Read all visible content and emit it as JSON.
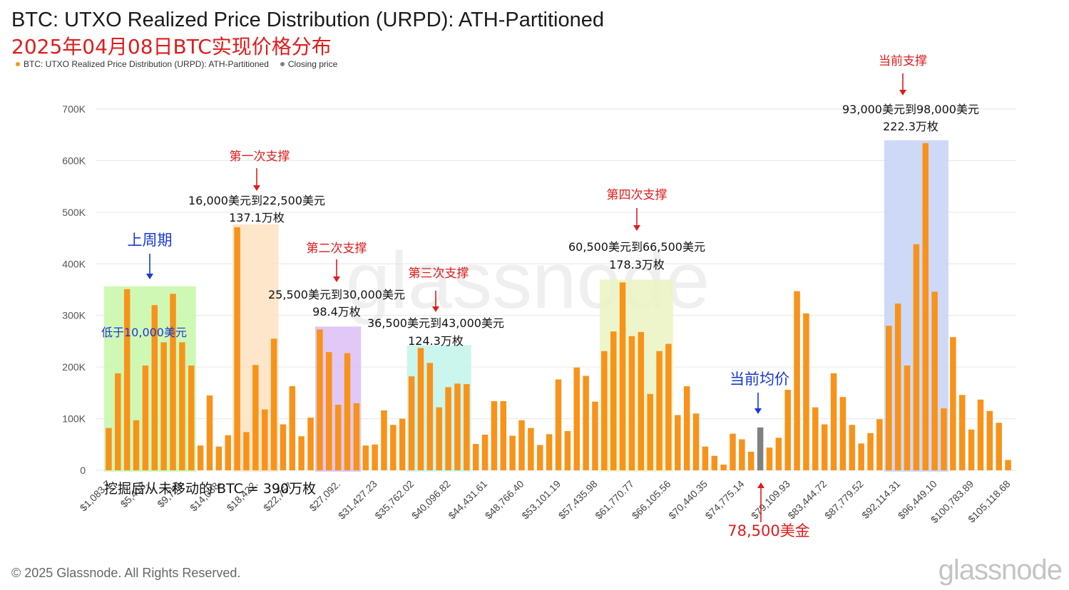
{
  "header": {
    "title": "BTC: UTXO Realized Price Distribution (URPD): ATH-Partitioned",
    "subtitle": "2025年04月08日BTC实现价格分布"
  },
  "legend": {
    "series_label": "BTC: UTXO Realized Price Distribution (URPD): ATH-Partitioned",
    "closing_label": "Closing price",
    "series_color": "#f7931a",
    "closing_color": "#808080"
  },
  "footer": {
    "copyright": "© 2025 Glassnode. All Rights Reserved.",
    "logo": "glassnode"
  },
  "chart_data": {
    "type": "bar",
    "title": "BTC: UTXO Realized Price Distribution (URPD): ATH-Partitioned",
    "xlabel": "",
    "ylabel": "",
    "ylim": [
      0,
      700000
    ],
    "yticks": [
      0,
      100000,
      200000,
      300000,
      400000,
      500000,
      600000,
      700000
    ],
    "ytick_labels": [
      "0",
      "100K",
      "200K",
      "300K",
      "400K",
      "500K",
      "600K",
      "700K"
    ],
    "grid": true,
    "legend_position": "top-left",
    "xtick_labels": [
      "$1,083.7",
      "$5,418.",
      "$9,753.",
      "$14,088.",
      "$18,422.",
      "$22,757.",
      "$27,092.",
      "$31,427.23",
      "$35,762.02",
      "$40,096.82",
      "$44,431.61",
      "$48,766.40",
      "$53,101.19",
      "$57,435.98",
      "$61,770.77",
      "$66,105.56",
      "$70,440.35",
      "$74,775.14",
      "$79,109.93",
      "$83,444.72",
      "$87,779.52",
      "$92,114.31",
      "$96,449.10",
      "$100,783.89",
      "$105,118.68"
    ],
    "series": [
      {
        "name": "BTC: UTXO Realized Price Distribution (URPD): ATH-Partitioned",
        "color": "#f7931a",
        "values": [
          82000,
          188000,
          351000,
          97000,
          203000,
          320000,
          248000,
          342000,
          248000,
          203000,
          48000,
          145000,
          46000,
          68000,
          471000,
          74000,
          204000,
          118000,
          255000,
          89000,
          163000,
          66000,
          102000,
          273000,
          229000,
          127000,
          227000,
          130000,
          48000,
          50000,
          116000,
          88000,
          100000,
          182000,
          237000,
          208000,
          122000,
          161000,
          168000,
          167000,
          51000,
          69000,
          134000,
          134000,
          67000,
          97000,
          82000,
          49000,
          70000,
          176000,
          76000,
          199000,
          183000,
          133000,
          231000,
          269000,
          364000,
          260000,
          268000,
          148000,
          231000,
          245000,
          107000,
          163000,
          110000,
          46000,
          28000,
          11000,
          71000,
          60000,
          36000,
          83000,
          44000,
          63000,
          156000,
          347000,
          304000,
          122000,
          89000,
          188000,
          142000,
          88000,
          52000,
          72000,
          99000,
          280000,
          323000,
          203000,
          438000,
          634000,
          346000,
          120000,
          258000,
          146000,
          79000,
          137000,
          115000,
          92000,
          20000
        ],
        "closing_index": 71,
        "closing_color": "#808080"
      }
    ],
    "highlight_regions": [
      {
        "start": 0,
        "end": 9,
        "color": "#c8f7a8"
      },
      {
        "start": 14,
        "end": 18,
        "color": "#fde2c0"
      },
      {
        "start": 23,
        "end": 27,
        "color": "#dcbef5"
      },
      {
        "start": 33,
        "end": 39,
        "color": "#c2f5ea"
      },
      {
        "start": 54,
        "end": 61,
        "color": "#ecf3c2"
      },
      {
        "start": 85,
        "end": 91,
        "color": "#c6d2f6"
      }
    ],
    "annotations": {
      "prev_cycle_title": "上周期",
      "prev_cycle_range": "低于10,000美元",
      "support1_title": "第一次支撑",
      "support1_range": "16,000美元到22,500美元",
      "support1_amount": "137.1万枚",
      "support2_title": "第二次支撑",
      "support2_range": "25,500美元到30,000美元",
      "support2_amount": "98.4万枚",
      "support3_title": "第三次支撑",
      "support3_range": "36,500美元到43,000美元",
      "support3_amount": "124.3万枚",
      "support4_title": "第四次支撑",
      "support4_range": "60,500美元到66,500美元",
      "support4_amount": "178.3万枚",
      "current_support_title": "当前支撑",
      "current_support_range": "93,000美元到98,000美元",
      "current_support_amount": "222.3万枚",
      "avg_price_title": "当前均价",
      "closing_price_label": "78,500美金",
      "never_moved": "挖掘后从未移动的 BTC = 390万枚"
    }
  }
}
